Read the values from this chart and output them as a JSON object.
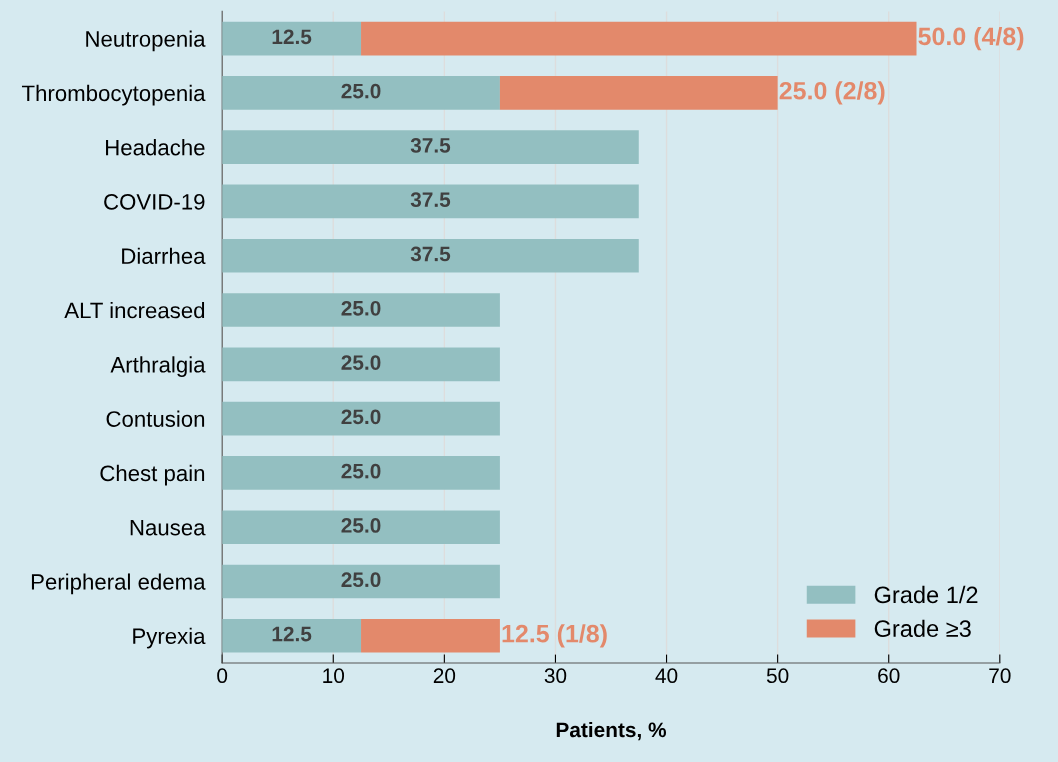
{
  "chart_data": {
    "type": "bar",
    "orientation": "horizontal",
    "stacked": true,
    "xlabel": "Patients, %",
    "categories": [
      "Neutropenia",
      "Thrombocytopenia",
      "Headache",
      "COVID-19",
      "Diarrhea",
      "ALT increased",
      "Arthralgia",
      "Contusion",
      "Chest pain",
      "Nausea",
      "Peripheral edema",
      "Pyrexia"
    ],
    "series": [
      {
        "name": "Grade 1/2",
        "color": "#93bfc1",
        "values": [
          12.5,
          25.0,
          37.5,
          37.5,
          37.5,
          25.0,
          25.0,
          25.0,
          25.0,
          25.0,
          25.0,
          12.5
        ],
        "value_labels": [
          "12.5",
          "25.0",
          "37.5",
          "37.5",
          "37.5",
          "25.0",
          "25.0",
          "25.0",
          "25.0",
          "25.0",
          "25.0",
          "12.5"
        ]
      },
      {
        "name": "Grade ≥3",
        "color": "#e3896b",
        "values": [
          50.0,
          25.0,
          null,
          null,
          null,
          null,
          null,
          null,
          null,
          null,
          null,
          12.5
        ],
        "value_labels": [
          "50.0 (4/8)",
          "25.0 (2/8)",
          null,
          null,
          null,
          null,
          null,
          null,
          null,
          null,
          null,
          "12.5 (1/8)"
        ]
      }
    ],
    "xlim": [
      0,
      70
    ],
    "xticks": [
      0,
      10,
      20,
      30,
      40,
      50,
      60,
      70
    ],
    "grid": "x",
    "legend": "bottom right"
  }
}
